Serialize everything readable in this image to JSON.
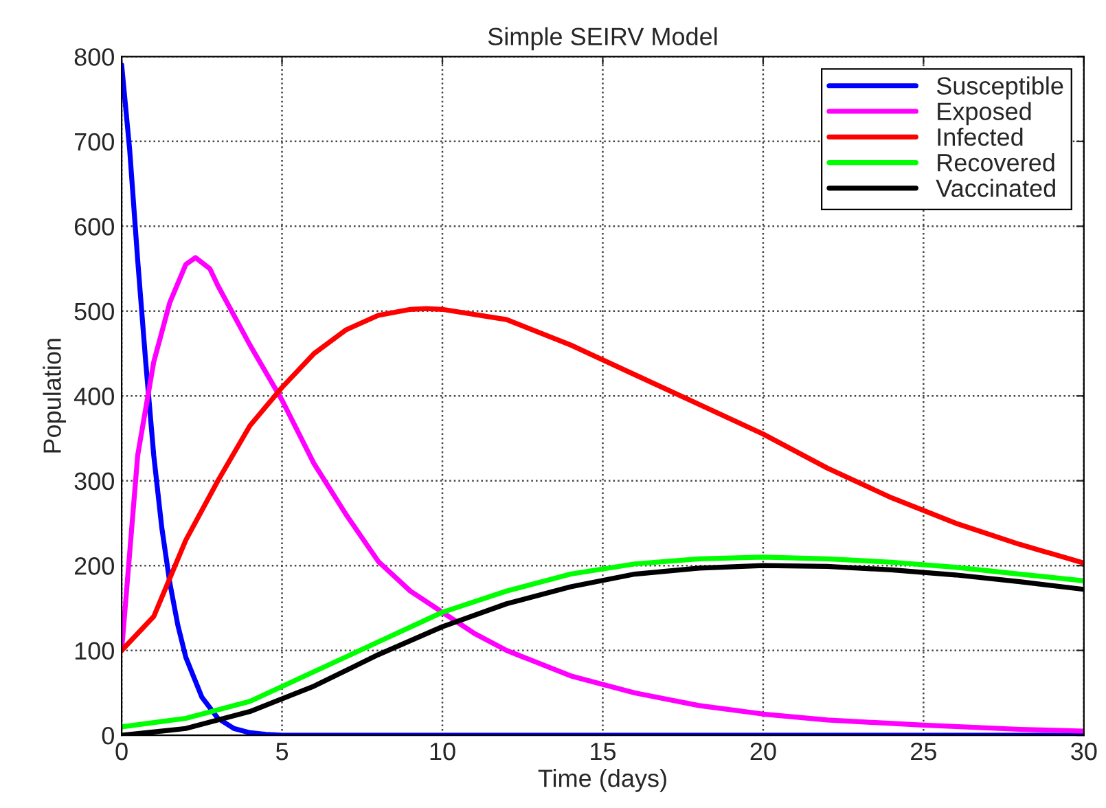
{
  "chart_data": {
    "type": "line",
    "title": "Simple SEIRV Model",
    "xlabel": "Time (days)",
    "ylabel": "Population",
    "xlim": [
      0,
      30
    ],
    "ylim": [
      0,
      800
    ],
    "xticks": [
      0,
      5,
      10,
      15,
      20,
      25,
      30
    ],
    "yticks": [
      0,
      100,
      200,
      300,
      400,
      500,
      600,
      700,
      800
    ],
    "grid": true,
    "legend": "top right",
    "marker": "none",
    "line_style": "solid",
    "series": [
      {
        "name": "Susceptible",
        "color": "#0000ff",
        "x": [
          0,
          0.25,
          0.5,
          0.75,
          1,
          1.25,
          1.5,
          1.75,
          2,
          2.5,
          3,
          3.5,
          4,
          4.5,
          5,
          10,
          30
        ],
        "values": [
          790,
          690,
          560,
          440,
          330,
          245,
          180,
          130,
          92,
          45,
          20,
          8,
          3,
          1,
          0,
          0,
          0
        ]
      },
      {
        "name": "Exposed",
        "color": "#ff00ff",
        "x": [
          0,
          0.5,
          1,
          1.5,
          2,
          2.3,
          2.75,
          3,
          4,
          5,
          6,
          7,
          8,
          9,
          10,
          11,
          12,
          14,
          16,
          18,
          20,
          22,
          25,
          28,
          30
        ],
        "values": [
          100,
          330,
          440,
          510,
          555,
          563,
          550,
          530,
          460,
          395,
          320,
          260,
          205,
          170,
          145,
          120,
          100,
          70,
          50,
          35,
          25,
          18,
          12,
          7,
          5
        ]
      },
      {
        "name": "Infected",
        "color": "#ff0000",
        "x": [
          0,
          1,
          2,
          3,
          4,
          5,
          6,
          7,
          8,
          9,
          9.5,
          10,
          12,
          14,
          16,
          18,
          20,
          22,
          24,
          26,
          28,
          30
        ],
        "values": [
          100,
          140,
          230,
          300,
          365,
          410,
          450,
          478,
          495,
          502,
          503,
          502,
          490,
          460,
          425,
          390,
          355,
          315,
          280,
          250,
          225,
          203
        ]
      },
      {
        "name": "Recovered",
        "color": "#00ff00",
        "x": [
          0,
          2,
          4,
          6,
          8,
          10,
          12,
          14,
          16,
          18,
          20,
          22,
          24,
          26,
          28,
          30
        ],
        "values": [
          10,
          20,
          40,
          75,
          110,
          145,
          170,
          190,
          202,
          208,
          210,
          208,
          204,
          198,
          190,
          182
        ]
      },
      {
        "name": "Vaccinated",
        "color": "#000000",
        "x": [
          0,
          2,
          4,
          6,
          8,
          10,
          12,
          14,
          16,
          18,
          20,
          22,
          24,
          26,
          28,
          30
        ],
        "values": [
          0,
          8,
          28,
          58,
          95,
          128,
          155,
          175,
          190,
          197,
          200,
          199,
          195,
          189,
          181,
          172
        ]
      }
    ]
  }
}
